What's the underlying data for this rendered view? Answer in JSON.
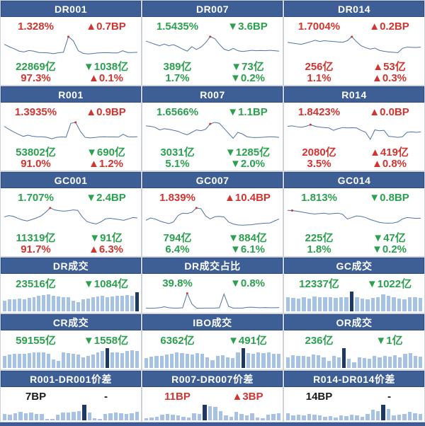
{
  "colors": {
    "header_bg": "#3d5f95",
    "header_border": "#2e4c7c",
    "up_red": "#d23430",
    "down_green": "#2ba14f",
    "neutral_black": "#1a1a1a",
    "line": "#4f74a8",
    "bar_light": "#a6c3e3",
    "bar_dark": "#1e3a63",
    "marker_dot": "#d23430"
  },
  "chart_data": [
    {
      "id": "dr001",
      "panel_type": "rate",
      "title": "DR001",
      "stats": [
        {
          "left": "1.328%",
          "left_color": "red",
          "right": "▲0.7BP",
          "right_color": "red"
        },
        {
          "left": "22869亿",
          "left_color": "green",
          "right": "▼1038亿",
          "right_color": "green"
        },
        {
          "left": "97.3%",
          "left_color": "red",
          "right": "▲0.1%",
          "right_color": "red"
        }
      ],
      "chart": {
        "type": "line",
        "marker_index": 13,
        "values": [
          0.62,
          0.5,
          0.4,
          0.28,
          0.24,
          0.31,
          0.28,
          0.21,
          0.2,
          0.19,
          0.15,
          0.2,
          0.22,
          1.0,
          0.8,
          0.3,
          0.17,
          0.14,
          0.16,
          0.19,
          0.2,
          0.2,
          0.19,
          0.19,
          0.3,
          0.21,
          0.21,
          0.22
        ]
      }
    },
    {
      "id": "dr007",
      "panel_type": "rate",
      "title": "DR007",
      "stats": [
        {
          "left": "1.5435%",
          "left_color": "green",
          "right": "▼3.6BP",
          "right_color": "green"
        },
        {
          "left": "389亿",
          "left_color": "green",
          "right": "▼73亿",
          "right_color": "green"
        },
        {
          "left": "1.7%",
          "left_color": "green",
          "right": "▼0.2%",
          "right_color": "green"
        }
      ],
      "chart": {
        "type": "line",
        "marker_index": 14,
        "values": [
          0.78,
          0.7,
          0.62,
          0.55,
          0.63,
          0.55,
          0.6,
          0.5,
          0.38,
          0.28,
          0.5,
          0.36,
          0.48,
          0.7,
          1.0,
          0.9,
          0.62,
          0.38,
          0.3,
          0.42,
          0.3,
          0.26,
          0.29,
          0.32,
          0.3,
          0.31,
          0.3,
          0.32,
          0.3,
          0.28
        ]
      }
    },
    {
      "id": "dr014",
      "panel_type": "rate",
      "title": "DR014",
      "stats": [
        {
          "left": "1.7004%",
          "left_color": "red",
          "right": "▲0.2BP",
          "right_color": "red"
        },
        {
          "left": "256亿",
          "left_color": "red",
          "right": "▲53亿",
          "right_color": "red"
        },
        {
          "left": "1.1%",
          "left_color": "red",
          "right": "▲0.3%",
          "right_color": "red"
        }
      ],
      "chart": {
        "type": "line",
        "marker_index": 14,
        "values": [
          0.72,
          0.68,
          0.65,
          0.62,
          0.68,
          0.75,
          0.82,
          0.76,
          0.8,
          0.78,
          0.76,
          0.74,
          0.72,
          0.8,
          1.0,
          0.75,
          0.55,
          0.45,
          0.38,
          0.43,
          0.32,
          0.27,
          0.24,
          0.22,
          0.2,
          0.42,
          0.48,
          0.47,
          0.46,
          0.48
        ]
      }
    },
    {
      "id": "r001",
      "panel_type": "rate",
      "title": "R001",
      "stats": [
        {
          "left": "1.3935%",
          "left_color": "red",
          "right": "▲0.9BP",
          "right_color": "red"
        },
        {
          "left": "53802亿",
          "left_color": "green",
          "right": "▼690亿",
          "right_color": "green"
        },
        {
          "left": "91.0%",
          "left_color": "red",
          "right": "▲1.2%",
          "right_color": "red"
        }
      ],
      "chart": {
        "type": "line",
        "marker_index": 15,
        "values": [
          0.8,
          0.65,
          0.52,
          0.4,
          0.3,
          0.36,
          0.3,
          0.28,
          0.28,
          0.25,
          0.18,
          0.25,
          0.27,
          0.26,
          0.95,
          1.0,
          0.55,
          0.25,
          0.22,
          0.24,
          0.27,
          0.28,
          0.27,
          0.27,
          0.26,
          0.4,
          0.28,
          0.27,
          0.28
        ]
      }
    },
    {
      "id": "r007",
      "panel_type": "rate",
      "title": "R007",
      "stats": [
        {
          "left": "1.6566%",
          "left_color": "green",
          "right": "▼1.1BP",
          "right_color": "green"
        },
        {
          "left": "3031亿",
          "left_color": "green",
          "right": "▼1285亿",
          "right_color": "green"
        },
        {
          "left": "5.1%",
          "left_color": "green",
          "right": "▼2.0%",
          "right_color": "green"
        }
      ],
      "chart": {
        "type": "line",
        "marker_index": 14,
        "values": [
          0.82,
          0.8,
          0.75,
          0.62,
          0.68,
          0.65,
          0.6,
          0.55,
          0.45,
          0.38,
          0.5,
          0.62,
          0.58,
          0.65,
          0.92,
          1.0,
          0.95,
          0.7,
          0.45,
          0.2,
          0.5,
          0.42,
          0.28,
          0.25,
          0.24,
          0.25,
          0.26,
          0.28,
          0.27,
          0.25
        ]
      }
    },
    {
      "id": "r014",
      "panel_type": "rate",
      "title": "R014",
      "stats": [
        {
          "left": "1.8423%",
          "left_color": "red",
          "right": "▲0.0BP",
          "right_color": "red"
        },
        {
          "left": "2080亿",
          "left_color": "red",
          "right": "▲419亿",
          "right_color": "red"
        },
        {
          "left": "3.5%",
          "left_color": "red",
          "right": "▲0.8%",
          "right_color": "red"
        }
      ],
      "chart": {
        "type": "line",
        "marker_index": 5,
        "values": [
          0.8,
          0.82,
          0.78,
          0.75,
          0.8,
          0.88,
          0.8,
          0.76,
          0.74,
          0.72,
          0.6,
          0.68,
          0.74,
          0.72,
          0.73,
          0.72,
          0.6,
          0.5,
          0.15,
          0.62,
          0.58,
          0.6,
          0.3,
          0.28,
          0.25,
          0.28,
          0.5,
          0.52,
          0.5,
          0.52
        ]
      }
    },
    {
      "id": "gc001",
      "panel_type": "rate",
      "title": "GC001",
      "stats": [
        {
          "left": "1.707%",
          "left_color": "green",
          "right": "▼2.4BP",
          "right_color": "green"
        },
        {
          "left": "11319亿",
          "left_color": "green",
          "right": "▼91亿",
          "right_color": "green"
        },
        {
          "left": "91.7%",
          "left_color": "red",
          "right": "▲6.3%",
          "right_color": "red"
        }
      ],
      "chart": {
        "type": "line",
        "marker_index": 10,
        "values": [
          0.55,
          0.62,
          0.58,
          0.48,
          0.4,
          0.35,
          0.42,
          0.5,
          0.6,
          0.78,
          1.0,
          0.9,
          0.86,
          0.84,
          0.86,
          0.9,
          0.88,
          0.55,
          0.32,
          0.25,
          0.2,
          0.3,
          0.45,
          0.48,
          0.45,
          0.42,
          0.38,
          0.45,
          0.52,
          0.5
        ]
      }
    },
    {
      "id": "gc007",
      "panel_type": "rate",
      "title": "GC007",
      "stats": [
        {
          "left": "1.839%",
          "left_color": "red",
          "right": "▲10.4BP",
          "right_color": "red"
        },
        {
          "left": "794亿",
          "left_color": "green",
          "right": "▼884亿",
          "right_color": "green"
        },
        {
          "left": "6.4%",
          "left_color": "green",
          "right": "▼6.1%",
          "right_color": "green"
        }
      ],
      "chart": {
        "type": "line",
        "marker_index": 11,
        "values": [
          0.38,
          0.5,
          0.45,
          0.35,
          0.28,
          0.22,
          0.3,
          0.62,
          0.74,
          0.72,
          0.78,
          1.0,
          0.96,
          0.6,
          0.45,
          0.56,
          0.58,
          0.55,
          0.3,
          0.2,
          0.15,
          0.14,
          0.15,
          0.16,
          0.2,
          0.22,
          0.24,
          0.25,
          0.35,
          0.45
        ]
      }
    },
    {
      "id": "gc014",
      "panel_type": "rate",
      "title": "GC014",
      "stats": [
        {
          "left": "1.813%",
          "left_color": "green",
          "right": "▼0.8BP",
          "right_color": "green"
        },
        {
          "left": "225亿",
          "left_color": "green",
          "right": "▼47亿",
          "right_color": "green"
        },
        {
          "left": "1.8%",
          "left_color": "green",
          "right": "▼0.2%",
          "right_color": "green"
        }
      ],
      "chart": {
        "type": "line",
        "marker_index": 1,
        "values": [
          0.88,
          0.87,
          0.84,
          0.8,
          0.76,
          0.72,
          0.7,
          0.72,
          0.74,
          0.7,
          0.72,
          0.74,
          0.68,
          0.45,
          0.52,
          0.6,
          0.58,
          0.52,
          0.42,
          0.35,
          0.28,
          0.25,
          0.24,
          0.25,
          0.3,
          0.45,
          0.52,
          0.5,
          0.48,
          0.49
        ]
      }
    },
    {
      "id": "dr-volume",
      "panel_type": "volume",
      "title": "DR成交",
      "stats": [
        {
          "left": "23516亿",
          "left_color": "green",
          "right": "▼1084亿",
          "right_color": "green"
        }
      ],
      "chart": {
        "type": "bar",
        "dark_index": 27,
        "values": [
          0.55,
          0.6,
          0.62,
          0.65,
          0.62,
          0.68,
          0.72,
          0.78,
          0.82,
          0.85,
          0.8,
          0.76,
          0.72,
          0.7,
          0.52,
          0.45,
          0.62,
          0.66,
          0.72,
          0.76,
          0.78,
          0.72,
          0.76,
          0.8,
          0.78,
          0.83,
          0.8,
          0.95
        ]
      }
    },
    {
      "id": "dr-volume-share",
      "panel_type": "volume",
      "title": "DR成交占比",
      "stats": [
        {
          "left": "39.8%",
          "left_color": "green",
          "right": "▼0.8%",
          "right_color": "green"
        }
      ],
      "chart": {
        "type": "line",
        "marker_index": 9,
        "values": [
          0.1,
          0.09,
          0.1,
          0.12,
          0.18,
          0.12,
          0.1,
          0.1,
          0.12,
          1.0,
          0.35,
          0.1,
          0.09,
          0.1,
          0.1,
          0.1,
          0.12,
          0.95,
          0.2,
          0.1,
          0.1,
          0.1,
          0.14,
          0.15,
          0.13,
          0.12,
          0.13,
          0.12,
          0.12,
          0.13
        ]
      }
    },
    {
      "id": "gc-volume",
      "panel_type": "volume",
      "title": "GC成交",
      "stats": [
        {
          "left": "12337亿",
          "left_color": "green",
          "right": "▼1022亿",
          "right_color": "green"
        }
      ],
      "chart": {
        "type": "bar",
        "dark_index": 12,
        "values": [
          0.7,
          0.68,
          0.64,
          0.72,
          0.64,
          0.75,
          0.72,
          0.7,
          0.72,
          0.68,
          0.7,
          0.72,
          1.0,
          0.7,
          0.65,
          0.62,
          0.68,
          0.72,
          0.85,
          0.8,
          0.72,
          0.65,
          0.6,
          0.72,
          0.7,
          0.68
        ]
      }
    },
    {
      "id": "cr-volume",
      "panel_type": "volume",
      "title": "CR成交",
      "stats": [
        {
          "left": "59155亿",
          "left_color": "green",
          "right": "▼1558亿",
          "right_color": "green"
        }
      ],
      "chart": {
        "type": "bar",
        "dark_index": 21,
        "values": [
          0.62,
          0.68,
          0.7,
          0.72,
          0.7,
          0.75,
          0.78,
          0.8,
          0.78,
          0.72,
          0.42,
          0.36,
          0.78,
          0.75,
          0.72,
          0.68,
          0.55,
          0.6,
          0.68,
          0.8,
          0.85,
          1.0,
          0.8,
          0.78,
          0.75,
          0.85,
          0.88,
          0.85
        ]
      }
    },
    {
      "id": "ibo-volume",
      "panel_type": "volume",
      "title": "IBO成交",
      "stats": [
        {
          "left": "6362亿",
          "left_color": "green",
          "right": "▼491亿",
          "right_color": "green"
        }
      ],
      "chart": {
        "type": "bar",
        "dark_index": 19,
        "values": [
          0.5,
          0.58,
          0.62,
          0.6,
          0.68,
          0.72,
          0.8,
          0.76,
          0.72,
          0.68,
          0.76,
          0.7,
          0.55,
          0.4,
          0.6,
          0.66,
          0.55,
          0.5,
          0.8,
          1.0,
          0.76,
          0.72,
          0.78,
          0.75,
          0.78,
          0.72,
          0.7
        ]
      }
    },
    {
      "id": "or-volume",
      "panel_type": "volume",
      "title": "OR成交",
      "stats": [
        {
          "left": "236亿",
          "left_color": "green",
          "right": "▼1亿",
          "right_color": "green"
        }
      ],
      "chart": {
        "type": "bar",
        "dark_index": 11,
        "values": [
          0.55,
          0.65,
          0.6,
          0.62,
          0.58,
          0.68,
          0.65,
          0.55,
          0.35,
          0.6,
          0.55,
          1.0,
          0.45,
          0.3,
          0.55,
          0.5,
          0.45,
          0.62,
          0.55,
          0.6,
          0.58,
          0.65,
          0.55,
          0.7,
          0.75,
          0.6,
          0.58
        ]
      }
    },
    {
      "id": "r001-dr001-spread",
      "panel_type": "spread",
      "title": "R001-DR001价差",
      "stats": [
        {
          "left": "7BP",
          "left_color": "black",
          "right": "-",
          "right_color": "black"
        }
      ],
      "chart": {
        "type": "bar",
        "dark_index": 15,
        "values": [
          0.4,
          0.35,
          0.45,
          0.55,
          0.45,
          0.5,
          0.42,
          0.4,
          0.1,
          0.08,
          0.35,
          0.48,
          0.52,
          0.55,
          0.58,
          1.0,
          0.5,
          0.12,
          0.1,
          0.42,
          0.45,
          0.48,
          0.45,
          0.42,
          0.45,
          0.55
        ]
      }
    },
    {
      "id": "r007-dr007-spread",
      "panel_type": "spread",
      "title": "R007-DR007价差",
      "stats": [
        {
          "left": "11BP",
          "left_color": "red",
          "right": "▲3BP",
          "right_color": "red"
        }
      ],
      "chart": {
        "type": "bar",
        "dark_index": 11,
        "values": [
          0.15,
          0.2,
          0.25,
          0.35,
          0.4,
          0.35,
          0.3,
          0.25,
          0.2,
          0.45,
          0.4,
          1.0,
          0.9,
          0.85,
          0.6,
          0.3,
          0.25,
          0.55,
          0.4,
          0.3,
          0.45,
          0.2,
          0.15,
          0.35,
          0.4,
          0.45
        ]
      }
    },
    {
      "id": "r014-dr014-spread",
      "panel_type": "spread",
      "title": "R014-DR014价差",
      "stats": [
        {
          "left": "14BP",
          "left_color": "black",
          "right": "-",
          "right_color": "black"
        }
      ],
      "chart": {
        "type": "bar",
        "dark_index": 18,
        "values": [
          0.45,
          0.3,
          0.35,
          0.32,
          0.4,
          0.35,
          0.3,
          0.25,
          0.28,
          0.2,
          0.3,
          0.28,
          0.35,
          0.3,
          0.25,
          0.4,
          0.7,
          0.6,
          1.0,
          0.75,
          0.3,
          0.35,
          0.4,
          0.55,
          0.45,
          0.4
        ]
      }
    }
  ]
}
